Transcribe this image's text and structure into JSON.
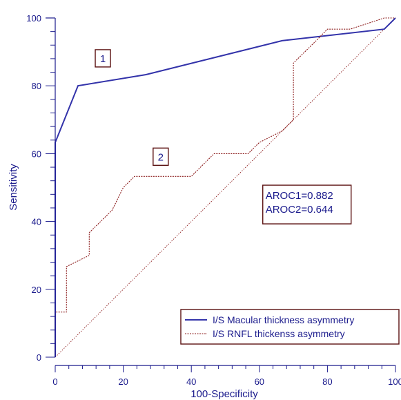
{
  "chart_data": {
    "type": "line",
    "xlabel": "100-Specificity",
    "ylabel": "Sensitivity",
    "xlim": [
      0,
      100
    ],
    "ylim": [
      0,
      100
    ],
    "x_ticks": [
      "0",
      "20",
      "40",
      "60",
      "80",
      "100"
    ],
    "y_ticks": [
      "0",
      "20",
      "40",
      "60",
      "80",
      "100"
    ],
    "grid": false,
    "legend_position": "bottom-right",
    "series": [
      {
        "name": "I/S Macular thickness asymmetry",
        "color": "#3333aa",
        "style": "solid",
        "x": [
          0,
          0,
          0,
          6.7,
          26.7,
          66.7,
          96.7,
          100
        ],
        "y": [
          0,
          20,
          63.3,
          80,
          83.3,
          93.3,
          96.7,
          100
        ]
      },
      {
        "name": "I/S RNFL thickenss asymmetry",
        "color": "#8b1a1a",
        "style": "dotted",
        "x": [
          0,
          0,
          3.3,
          3.3,
          10,
          10,
          16.7,
          20,
          23.3,
          40,
          46.7,
          56.7,
          60,
          66.7,
          70,
          70,
          76.7,
          80,
          86.7,
          96.7,
          100
        ],
        "y": [
          0,
          13.3,
          13.3,
          26.7,
          30,
          36.7,
          43.3,
          50,
          53.3,
          53.3,
          60,
          60,
          63.3,
          66.7,
          70,
          86.7,
          93.3,
          96.7,
          96.7,
          100,
          100
        ]
      }
    ],
    "reference_line": {
      "x": [
        0,
        100
      ],
      "y": [
        0,
        100
      ],
      "color": "#8b1a1a",
      "style": "dotted"
    },
    "annotations": [
      {
        "label": "1",
        "x": 14,
        "y": 88
      },
      {
        "label": "2",
        "x": 31,
        "y": 59
      }
    ],
    "auc_box": {
      "lines": [
        "AROC1=0.882",
        "AROC2=0.644"
      ],
      "x": 61,
      "y": 45
    }
  }
}
